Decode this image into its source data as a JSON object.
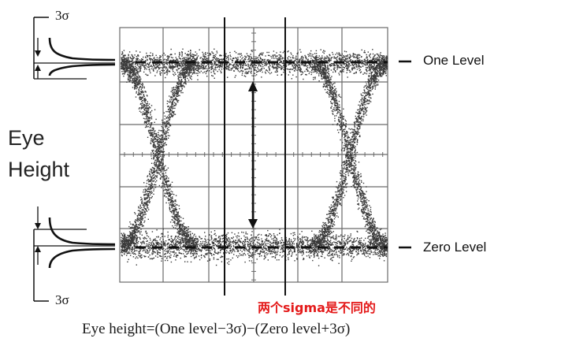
{
  "figure": {
    "eye_label": [
      "Eye",
      "Height"
    ],
    "sigma_top": "3σ",
    "sigma_bottom": "3σ",
    "one_level": "One Level",
    "zero_level": "Zero Level",
    "annotation": "两个sigma是不同的",
    "formula": "Eye height=(One level−3σ)−(Zero level+3σ)",
    "colors": {
      "ink": "#111111",
      "grid": "#666666",
      "noise": "#3a3a3a",
      "annotation": "#e41a1a"
    }
  }
}
